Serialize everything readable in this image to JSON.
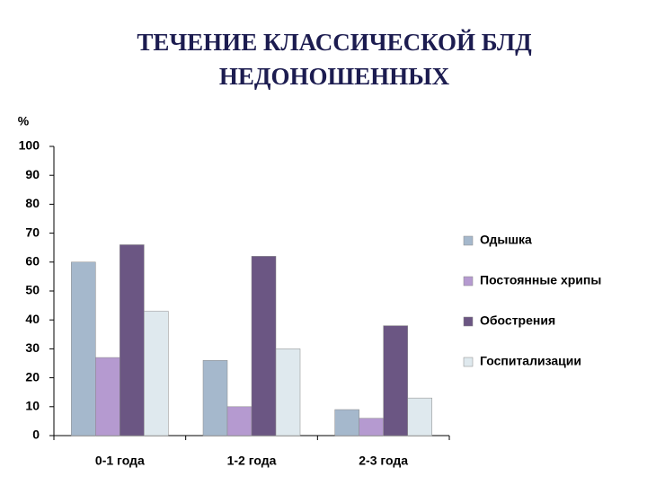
{
  "chart_data": {
    "type": "bar",
    "title": "ТЕЧЕНИЕ КЛАССИЧЕСКОЙ БЛД",
    "subtitle": "НЕДОНОШЕННЫХ",
    "y_label": "%",
    "categories": [
      "0-1 года",
      "1-2 года",
      "2-3 года"
    ],
    "series": [
      {
        "name": "Одышка",
        "color": "#a5b8cc",
        "values": [
          60,
          26,
          9
        ]
      },
      {
        "name": "Постоянные хрипы",
        "color": "#b59ad0",
        "values": [
          27,
          10,
          6
        ]
      },
      {
        "name": "Обострения",
        "color": "#6b5683",
        "values": [
          66,
          62,
          38
        ]
      },
      {
        "name": "Госпитализации",
        "color": "#dfe9ee",
        "values": [
          43,
          30,
          13
        ]
      }
    ],
    "ylim": [
      0,
      100
    ],
    "yticks": [
      0,
      10,
      20,
      30,
      40,
      50,
      60,
      70,
      80,
      90,
      100
    ],
    "legend": "right"
  }
}
